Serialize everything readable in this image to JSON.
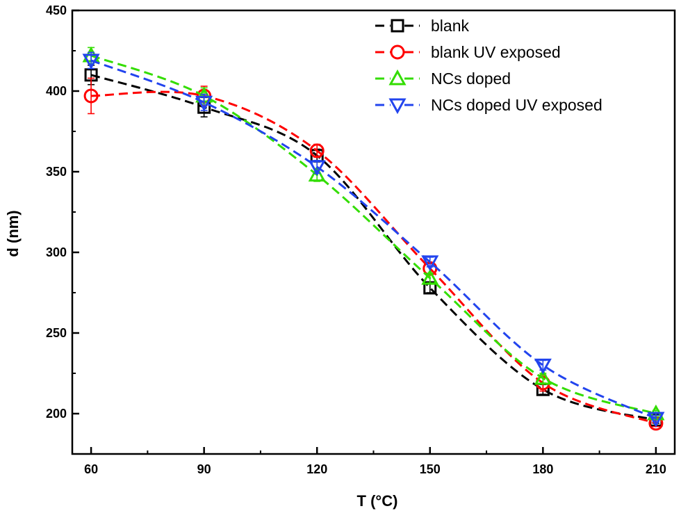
{
  "chart_data": {
    "type": "line",
    "title": "",
    "xlabel": "T (°C)",
    "ylabel": "d (nm)",
    "x": [
      60,
      90,
      120,
      150,
      180,
      210
    ],
    "xlim": [
      55,
      215
    ],
    "ylim": [
      175,
      450
    ],
    "xticks_major": [
      60,
      90,
      120,
      150,
      180,
      210
    ],
    "yticks_major": [
      200,
      250,
      300,
      350,
      400,
      450
    ],
    "grid": false,
    "legend_position": "top-right",
    "series": [
      {
        "name": "blank",
        "values": [
          410,
          390,
          360,
          278,
          215,
          196
        ],
        "errors": [
          6,
          6,
          4,
          3,
          3,
          2
        ],
        "color": "#000000",
        "marker": "square"
      },
      {
        "name": "blank UV exposed",
        "values": [
          397,
          397,
          363,
          290,
          219,
          194
        ],
        "errors": [
          11,
          6,
          4,
          3,
          5,
          2
        ],
        "color": "#ff0000",
        "marker": "circle"
      },
      {
        "name": "NCs doped",
        "values": [
          422,
          397,
          348,
          284,
          222,
          200
        ],
        "errors": [
          5,
          5,
          4,
          3,
          3,
          2
        ],
        "color": "#33dd00",
        "marker": "triangle-up"
      },
      {
        "name": "NCs doped UV exposed",
        "values": [
          419,
          393,
          353,
          294,
          230,
          197
        ],
        "errors": [
          5,
          5,
          4,
          3,
          3,
          2
        ],
        "color": "#2244ee",
        "marker": "triangle-down"
      }
    ]
  }
}
